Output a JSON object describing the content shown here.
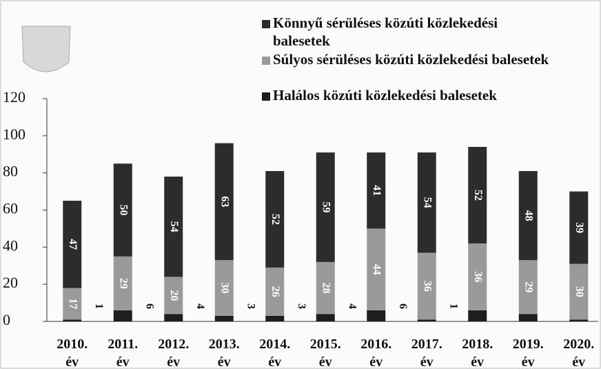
{
  "chart_data": {
    "type": "stacked_bar",
    "categories": [
      "2010. év",
      "2011. év",
      "2012. év",
      "2013. év",
      "2014. év",
      "2015. év",
      "2016. év",
      "2017. év",
      "2018. év",
      "2019. év",
      "2020. év"
    ],
    "series": [
      {
        "name": "Halálos közúti közlekedési balesetek",
        "color": "#1e1e1e",
        "label_color": "#111111",
        "values": [
          1,
          6,
          4,
          3,
          3,
          4,
          6,
          1,
          6,
          4,
          1
        ],
        "value_labels": [
          "1",
          "6",
          "4",
          "3",
          "3",
          "4",
          "6",
          "1",
          null,
          null,
          null
        ]
      },
      {
        "name": "Súlyos sérüléses közúti közlekedési balesetek",
        "color": "#9a9a9a",
        "label_color": "#ffffff",
        "values": [
          17,
          29,
          20,
          30,
          26,
          28,
          44,
          36,
          36,
          29,
          30
        ]
      },
      {
        "name": "Könnyű sérüléses közúti közlekedési balesetek",
        "color": "#2c2c2c",
        "label_color": "#ffffff",
        "values": [
          47,
          50,
          54,
          63,
          52,
          59,
          41,
          54,
          52,
          48,
          39
        ]
      }
    ],
    "ylim": [
      0,
      120
    ],
    "yticks": [
      0,
      20,
      40,
      60,
      80,
      100,
      120
    ],
    "legend": "top-right"
  }
}
